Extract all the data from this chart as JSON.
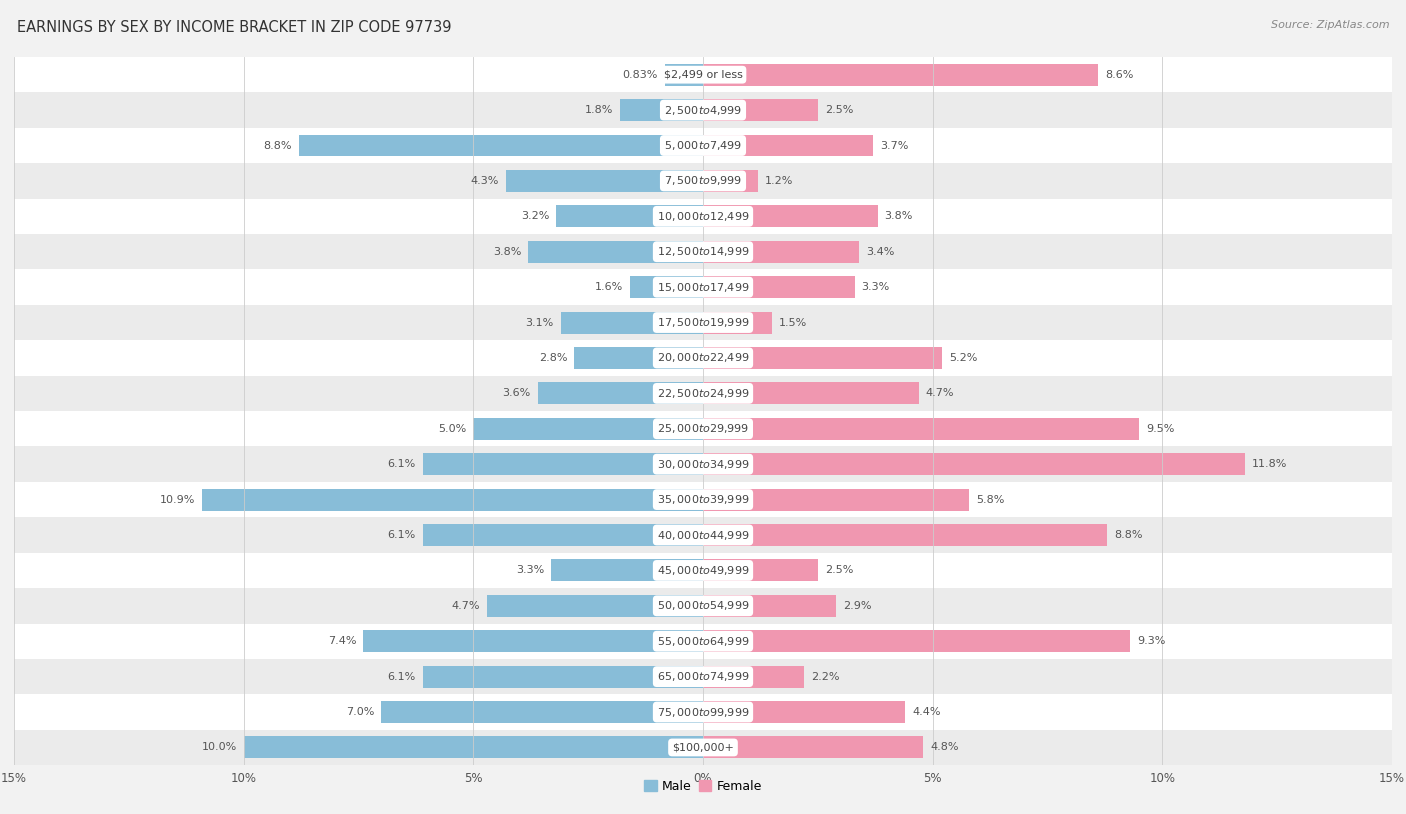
{
  "title": "EARNINGS BY SEX BY INCOME BRACKET IN ZIP CODE 97739",
  "source": "Source: ZipAtlas.com",
  "categories": [
    "$2,499 or less",
    "$2,500 to $4,999",
    "$5,000 to $7,499",
    "$7,500 to $9,999",
    "$10,000 to $12,499",
    "$12,500 to $14,999",
    "$15,000 to $17,499",
    "$17,500 to $19,999",
    "$20,000 to $22,499",
    "$22,500 to $24,999",
    "$25,000 to $29,999",
    "$30,000 to $34,999",
    "$35,000 to $39,999",
    "$40,000 to $44,999",
    "$45,000 to $49,999",
    "$50,000 to $54,999",
    "$55,000 to $64,999",
    "$65,000 to $74,999",
    "$75,000 to $99,999",
    "$100,000+"
  ],
  "male_values": [
    0.83,
    1.8,
    8.8,
    4.3,
    3.2,
    3.8,
    1.6,
    3.1,
    2.8,
    3.6,
    5.0,
    6.1,
    10.9,
    6.1,
    3.3,
    4.7,
    7.4,
    6.1,
    7.0,
    10.0
  ],
  "female_values": [
    8.6,
    2.5,
    3.7,
    1.2,
    3.8,
    3.4,
    3.3,
    1.5,
    5.2,
    4.7,
    9.5,
    11.8,
    5.8,
    8.8,
    2.5,
    2.9,
    9.3,
    2.2,
    4.4,
    4.8
  ],
  "male_color": "#88bdd8",
  "female_color": "#f097b0",
  "background_color": "#f2f2f2",
  "row_colors": [
    "#ffffff",
    "#ebebeb"
  ],
  "xlim": 15.0,
  "bar_height": 0.62,
  "title_fontsize": 10.5,
  "source_fontsize": 8,
  "label_fontsize": 8,
  "cat_fontsize": 8,
  "tick_fontsize": 8.5,
  "legend_fontsize": 9
}
